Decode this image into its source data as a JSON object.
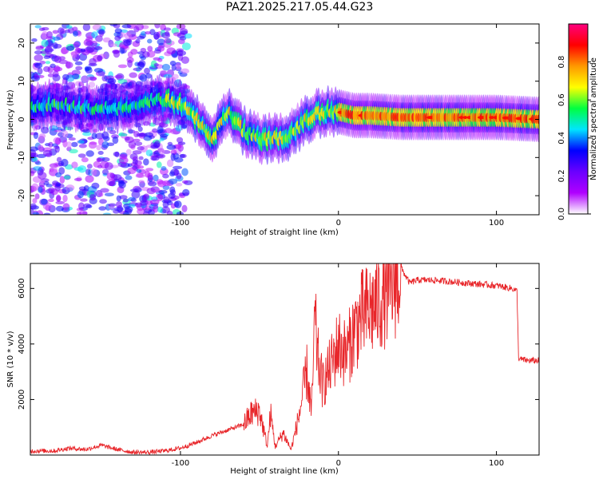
{
  "title": "PAZ1.2025.217.05.44.G23",
  "chart_data": [
    {
      "type": "heatmap",
      "xlabel": "Height of straight line (km)",
      "ylabel": "Frequency (Hz)",
      "xlim": [
        -195,
        127
      ],
      "ylim": [
        -25,
        25
      ],
      "xticks": [
        -100,
        0,
        100
      ],
      "xtick_labels": [
        "-100",
        "0",
        "100"
      ],
      "yticks": [
        -20,
        -10,
        0,
        10,
        20
      ],
      "ytick_labels": [
        "-20",
        "-10",
        "0",
        "10",
        "20"
      ],
      "ridge": {
        "x": [
          -195,
          -180,
          -160,
          -150,
          -140,
          -130,
          -120,
          -110,
          -100,
          -90,
          -80,
          -70,
          -60,
          -50,
          -40,
          -30,
          -20,
          -10,
          0,
          10,
          20,
          40,
          60,
          80,
          100,
          127
        ],
        "freq_hz": [
          3,
          4,
          3,
          3,
          3,
          4,
          5,
          5,
          4,
          0,
          -5,
          2,
          -3,
          -5,
          -5,
          -4,
          0,
          2,
          2,
          1,
          1,
          0.5,
          0.5,
          0.5,
          0.5,
          0
        ]
      },
      "colorbar": {
        "label": "Normalized spectral amplitude",
        "range": [
          0,
          1
        ],
        "ticks": [
          0.0,
          0.2,
          0.4,
          0.6,
          0.8
        ],
        "tick_labels": [
          "0.0",
          "0.2",
          "0.4",
          "0.6",
          "0.8"
        ],
        "colormap": [
          "#ffffff",
          "#b000ff",
          "#6a00ff",
          "#0000ff",
          "#00e5ff",
          "#00ff40",
          "#ffff00",
          "#ff9900",
          "#ff0000",
          "#ff007f"
        ]
      },
      "grid": false
    },
    {
      "type": "line",
      "xlabel": "Height of straight line (km)",
      "ylabel": "SNR (10 * v/v)",
      "xlim": [
        -195,
        127
      ],
      "ylim": [
        0,
        6900
      ],
      "xticks": [
        -100,
        0,
        100
      ],
      "xtick_labels": [
        "-100",
        "0",
        "100"
      ],
      "yticks": [
        2000,
        4000,
        6000
      ],
      "ytick_labels": [
        "2000",
        "4000",
        "6000"
      ],
      "series": [
        {
          "color": "#e8262a",
          "x": [
            -195,
            -180,
            -170,
            -160,
            -150,
            -140,
            -130,
            -120,
            -110,
            -100,
            -90,
            -80,
            -70,
            -60,
            -55,
            -50,
            -45,
            -43,
            -40,
            -35,
            -30,
            -25,
            -20,
            -17,
            -15,
            -13,
            -10,
            -5,
            0,
            5,
            10,
            15,
            20,
            25,
            30,
            35,
            40,
            45,
            50,
            60,
            70,
            80,
            90,
            100,
            110,
            113,
            114,
            115,
            120,
            127
          ],
          "y": [
            150,
            150,
            250,
            200,
            350,
            200,
            100,
            100,
            150,
            250,
            450,
            700,
            900,
            1100,
            1500,
            1600,
            300,
            1500,
            300,
            800,
            200,
            1400,
            3000,
            1500,
            4800,
            3500,
            2500,
            3200,
            4000,
            3600,
            4500,
            5000,
            5200,
            5500,
            5900,
            6200,
            6700,
            6200,
            6300,
            6300,
            6250,
            6200,
            6150,
            6100,
            6000,
            5900,
            3500,
            3450,
            3400,
            3400
          ]
        }
      ],
      "grid": false
    }
  ]
}
